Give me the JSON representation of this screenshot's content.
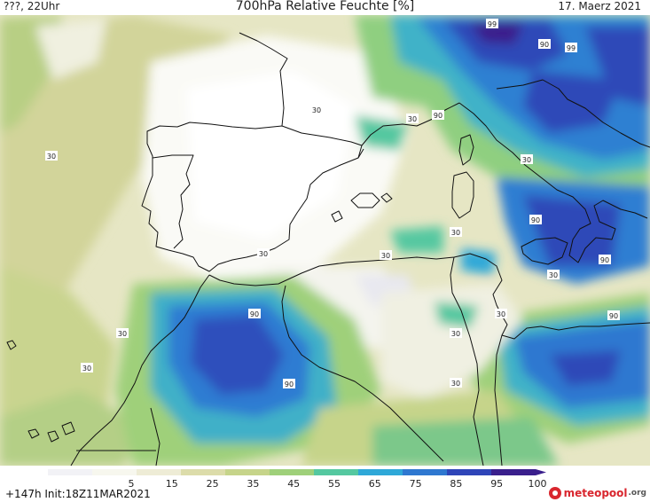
{
  "header": {
    "left": "???, 22Uhr",
    "title": "700hPa Relative Feuchte [%]",
    "date": "17. Maerz 2021"
  },
  "footer": {
    "run_info": "+147h  Init:18Z11MAR2021",
    "brand_main": "meteopool",
    "brand_tld": ".org"
  },
  "colorbar": {
    "ticks": [
      "5",
      "15",
      "25",
      "35",
      "45",
      "55",
      "65",
      "75",
      "85",
      "95",
      "100"
    ],
    "colors": [
      "#f2f2f6",
      "#f7f7ee",
      "#eeecd6",
      "#dcdcaa",
      "#c6d48a",
      "#9fd07a",
      "#55c8a0",
      "#2fa8d8",
      "#2f78d0",
      "#2f45b8",
      "#3a1f8c"
    ]
  },
  "contour_labels": [
    {
      "text": "99"
    },
    {
      "text": "90"
    },
    {
      "text": "99"
    },
    {
      "text": "30"
    },
    {
      "text": "30"
    },
    {
      "text": "90"
    },
    {
      "text": "30"
    },
    {
      "text": "30"
    },
    {
      "text": "90"
    },
    {
      "text": "30"
    },
    {
      "text": "30"
    },
    {
      "text": "30"
    },
    {
      "text": "90"
    },
    {
      "text": "30"
    },
    {
      "text": "90"
    },
    {
      "text": "90"
    },
    {
      "text": "30"
    },
    {
      "text": "30"
    },
    {
      "text": "30"
    },
    {
      "text": "90"
    },
    {
      "text": "30"
    },
    {
      "text": "30"
    }
  ]
}
